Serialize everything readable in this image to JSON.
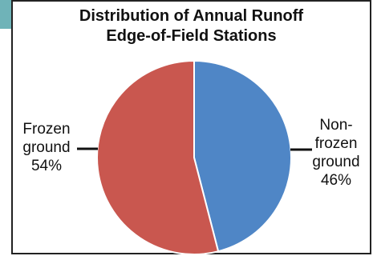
{
  "chart_data": {
    "type": "pie",
    "title_lines": [
      "Distribution of Annual Runoff",
      "Edge-of-Field Stations"
    ],
    "slices": [
      {
        "label_lines": [
          "Non-",
          "frozen",
          "ground"
        ],
        "value": 46,
        "value_label": "46%",
        "color": "#4f86c6"
      },
      {
        "label_lines": [
          "Frozen",
          "ground"
        ],
        "value": 54,
        "value_label": "54%",
        "color": "#c9574f"
      }
    ]
  }
}
